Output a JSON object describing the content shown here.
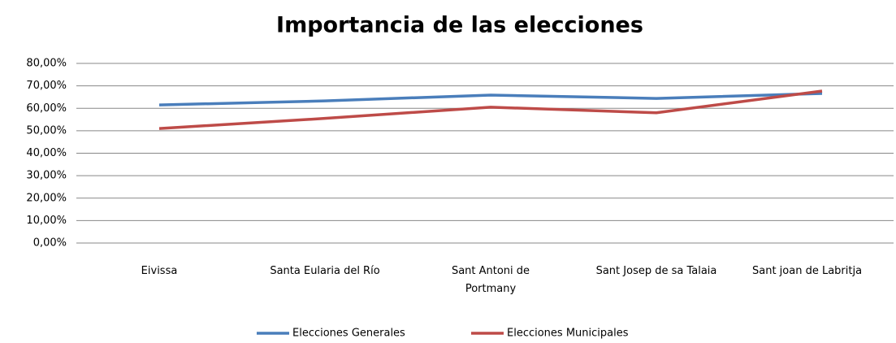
{
  "chart_data": {
    "type": "line",
    "title": "Importancia de las elecciones",
    "categories": [
      "Eivissa",
      "Santa Eularia del Río",
      "Sant Antoni de Portmany",
      "Sant Josep de sa Talaia",
      "Sant joan de Labritja"
    ],
    "series": [
      {
        "name": "Elecciones Generales",
        "color": "#4a7ebb",
        "values": [
          61.5,
          63.3,
          65.9,
          64.4,
          66.6
        ]
      },
      {
        "name": "Elecciones Municipales",
        "color": "#be4b48",
        "values": [
          51,
          55.5,
          60.5,
          58,
          67.7
        ]
      }
    ],
    "ylim": [
      0,
      80
    ],
    "yticks": [
      {
        "value": 0,
        "label": "0,00%"
      },
      {
        "value": 10,
        "label": "10,00%"
      },
      {
        "value": 20,
        "label": "20,00%"
      },
      {
        "value": 30,
        "label": "30,00%"
      },
      {
        "value": 40,
        "label": "40,00%"
      },
      {
        "value": 50,
        "label": "50,00%"
      },
      {
        "value": 60,
        "label": "60,00%"
      },
      {
        "value": 70,
        "label": "70,00%"
      },
      {
        "value": 80,
        "label": "80,00%"
      }
    ],
    "grid": true,
    "legend": "bottom"
  }
}
